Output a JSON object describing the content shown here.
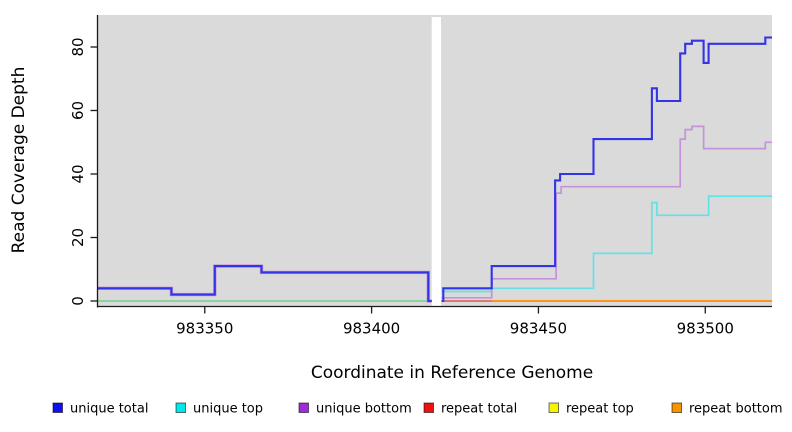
{
  "chart_data": {
    "type": "line",
    "step": true,
    "title": "",
    "xlabel": "Coordinate in Reference Genome",
    "ylabel": "Read Coverage Depth",
    "xlim": [
      983318,
      983520
    ],
    "ylim": [
      0,
      90
    ],
    "xticks": [
      983350,
      983400,
      983450,
      983500
    ],
    "yticks": [
      0,
      20,
      40,
      60,
      80
    ],
    "grid": false,
    "plot_background": "#DADADA",
    "gap_x": [
      983418,
      983420.8
    ],
    "legend_position": "bottom",
    "legend": {
      "items": [
        {
          "label": "unique total",
          "color": "#0F0FEF"
        },
        {
          "label": "unique top",
          "color": "#00E8E8"
        },
        {
          "label": "unique bottom",
          "color": "#A22AD8"
        },
        {
          "label": "repeat total",
          "color": "#EE1111"
        },
        {
          "label": "repeat top",
          "color": "#F5F500"
        },
        {
          "label": "repeat bottom",
          "color": "#F59300"
        }
      ]
    },
    "series": [
      {
        "name": "repeat top",
        "key": "repeat-top",
        "line_color": "#E8E84A",
        "width": 1.6,
        "in_legend": true,
        "segments": [
          {
            "points": [
              [
                983318,
                0
              ],
              [
                983418,
                0
              ]
            ]
          },
          {
            "points": [
              [
                983421,
                0
              ],
              [
                983520,
                0
              ]
            ]
          }
        ]
      },
      {
        "name": "repeat total",
        "key": "repeat-total",
        "line_color": "#DC5566",
        "width": 1.6,
        "in_legend": true,
        "segments": [
          {
            "points": [
              [
                983421,
                0
              ],
              [
                983520,
                0
              ]
            ]
          }
        ]
      },
      {
        "name": "unique top",
        "key": "unique-top",
        "line_color": "#62E2E8",
        "width": 1.7,
        "in_legend": true,
        "segments": [
          {
            "points": [
              [
                983318,
                0
              ],
              [
                983418,
                0
              ]
            ]
          },
          {
            "points": [
              [
                983421,
                3
              ],
              [
                983436,
                4
              ],
              [
                983466.5,
                15
              ],
              [
                983484,
                31
              ],
              [
                983485.5,
                27
              ],
              [
                983501,
                33
              ],
              [
                983520,
                33
              ]
            ]
          }
        ]
      },
      {
        "name": "overlap blend (unique top + repeat top at 0)",
        "key": "baseline-blend",
        "line_color": "#8FCC8F",
        "width": 1.6,
        "in_legend": false,
        "segments": [
          {
            "points": [
              [
                983318,
                0
              ],
              [
                983418,
                0
              ]
            ]
          }
        ]
      },
      {
        "name": "unique bottom",
        "key": "unique-bottom",
        "line_color": "#C493DC",
        "width": 1.7,
        "in_legend": true,
        "segments": [
          {
            "points": [
              [
                983318,
                4
              ],
              [
                983340,
                2
              ],
              [
                983353,
                11
              ],
              [
                983367,
                9
              ],
              [
                983417,
                0
              ],
              [
                983418,
                0
              ]
            ],
            "width": 3.4
          },
          {
            "points": [
              [
                983421,
                1
              ],
              [
                983436,
                7
              ],
              [
                983455.3,
                34
              ],
              [
                983456.8,
                36
              ],
              [
                983492.5,
                51
              ],
              [
                983494,
                54
              ],
              [
                983496,
                55
              ],
              [
                983499.5,
                48
              ],
              [
                983518,
                50
              ],
              [
                983520,
                50
              ]
            ]
          }
        ]
      },
      {
        "name": "repeat bottom",
        "key": "repeat-bottom",
        "line_color": "#FF9414",
        "width": 1.8,
        "in_legend": true,
        "segments": [
          {
            "points": [
              [
                983436,
                0
              ],
              [
                983520,
                0
              ]
            ]
          }
        ]
      },
      {
        "name": "unique total",
        "key": "unique-total",
        "line_color": "#3333E8",
        "width": 2.1,
        "in_legend": true,
        "segments": [
          {
            "points": [
              [
                983318,
                4
              ],
              [
                983340,
                2
              ],
              [
                983353,
                11
              ],
              [
                983367,
                9
              ],
              [
                983417,
                0
              ],
              [
                983418,
                0
              ]
            ]
          },
          {
            "points": [
              [
                983421,
                0
              ],
              [
                983421.5,
                4
              ],
              [
                983436,
                11
              ],
              [
                983455,
                38
              ],
              [
                983456.5,
                40
              ],
              [
                983466.5,
                51
              ],
              [
                983484,
                67
              ],
              [
                983485.5,
                63
              ],
              [
                983492.5,
                78
              ],
              [
                983494,
                81
              ],
              [
                983496,
                82
              ],
              [
                983499.5,
                75
              ],
              [
                983501,
                81
              ],
              [
                983518,
                83
              ],
              [
                983520,
                83
              ]
            ]
          }
        ]
      }
    ]
  }
}
